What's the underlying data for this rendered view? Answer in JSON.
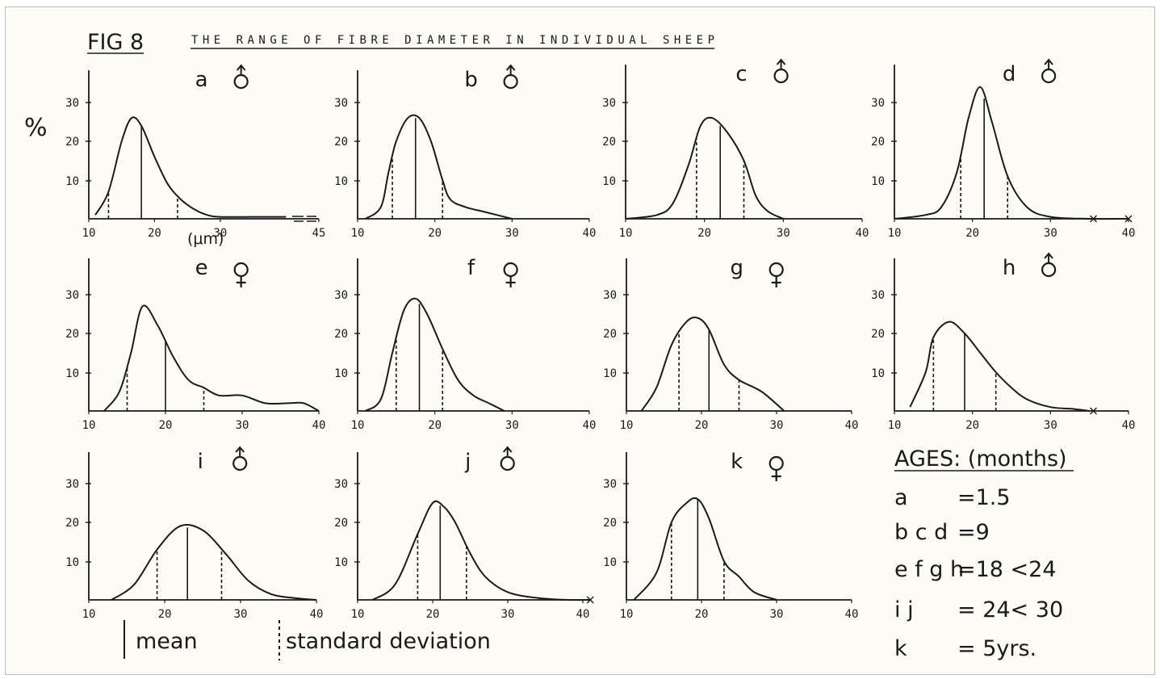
{
  "figure": {
    "label": "FIG 8",
    "title": "THE RANGE OF FIBRE DIAMETER IN INDIVIDUAL SHEEP",
    "y_unit": "%",
    "x_unit": "(μm)"
  },
  "legend": {
    "mean": "mean",
    "sd": "standard deviation"
  },
  "ages": {
    "heading": "AGES: (months)",
    "rows": [
      {
        "key": "a",
        "value": "=1.5"
      },
      {
        "key": "b c d",
        "value": "=9"
      },
      {
        "key": "e f g h",
        "value": "=18 <24"
      },
      {
        "key": "i j",
        "value": "= 24< 30"
      },
      {
        "key": "k",
        "value": "= 5yrs."
      }
    ]
  },
  "colors": {
    "ink": "#1a1a1a",
    "paper": "#fdfcf4"
  },
  "chart_data": [
    {
      "id": "a",
      "type": "line",
      "label": "a",
      "sex": "male",
      "xlim": [
        10,
        45
      ],
      "xticks": [
        10,
        20,
        30,
        45
      ],
      "yticks": [
        10,
        20,
        30
      ],
      "ylim": [
        0,
        36
      ],
      "x": [
        11,
        13,
        15,
        16.5,
        18,
        20,
        22,
        24,
        26,
        28,
        30,
        35,
        40
      ],
      "y": [
        1,
        7,
        20,
        26,
        24,
        16,
        9,
        5,
        2.5,
        1,
        0.5,
        0.5,
        0.5
      ],
      "mean": 18,
      "sd_low": 13,
      "sd_high": 23.5,
      "marks": []
    },
    {
      "id": "b",
      "type": "line",
      "label": "b",
      "sex": "male",
      "xlim": [
        10,
        40
      ],
      "xticks": [
        10,
        20,
        30,
        40
      ],
      "yticks": [
        10,
        20,
        30
      ],
      "ylim": [
        0,
        36
      ],
      "x": [
        11,
        13,
        14,
        15,
        16.5,
        18,
        19.5,
        21,
        22,
        24,
        26,
        28,
        30
      ],
      "y": [
        0,
        3,
        12,
        20,
        26,
        26,
        20,
        10,
        5,
        3,
        2,
        1,
        0
      ],
      "mean": 17.5,
      "sd_low": 14.5,
      "sd_high": 21,
      "marks": []
    },
    {
      "id": "c",
      "type": "line",
      "label": "c",
      "sex": "male",
      "xlim": [
        10,
        40
      ],
      "xticks": [
        10,
        20,
        30,
        40
      ],
      "yticks": [
        10,
        20,
        30
      ],
      "ylim": [
        0,
        36
      ],
      "x": [
        10,
        14,
        16,
        18,
        19.5,
        21,
        23,
        25,
        26.5,
        28,
        30
      ],
      "y": [
        0,
        1,
        4,
        14,
        24,
        26,
        22,
        15,
        6,
        2,
        0
      ],
      "mean": 22,
      "sd_low": 19,
      "sd_high": 25,
      "marks": []
    },
    {
      "id": "d",
      "type": "line",
      "label": "d",
      "sex": "male",
      "xlim": [
        10,
        40
      ],
      "xticks": [
        10,
        20,
        30,
        40
      ],
      "yticks": [
        10,
        20,
        30
      ],
      "ylim": [
        0,
        36
      ],
      "x": [
        10,
        14,
        16,
        18,
        19.5,
        21,
        22.5,
        24.5,
        27,
        30,
        35,
        40
      ],
      "y": [
        0,
        1,
        3,
        12,
        26,
        34,
        25,
        11,
        3,
        0.5,
        0,
        0
      ],
      "mean": 21.5,
      "sd_low": 18.5,
      "sd_high": 24.5,
      "marks": [
        35.5,
        40
      ]
    },
    {
      "id": "e",
      "type": "line",
      "label": "e",
      "sex": "female",
      "xlim": [
        10,
        40
      ],
      "xticks": [
        10,
        20,
        30,
        40
      ],
      "yticks": [
        10,
        20,
        30
      ],
      "ylim": [
        0,
        36
      ],
      "x": [
        12,
        14,
        15.5,
        17,
        19,
        21,
        23,
        25,
        27,
        30,
        33,
        36,
        38,
        40
      ],
      "y": [
        0,
        5,
        15,
        27,
        22,
        14,
        8,
        6,
        4,
        4,
        2,
        2,
        2,
        0
      ],
      "mean": 20,
      "sd_low": 15,
      "sd_high": 25,
      "marks": []
    },
    {
      "id": "f",
      "type": "line",
      "label": "f",
      "sex": "female",
      "xlim": [
        10,
        40
      ],
      "xticks": [
        10,
        20,
        30,
        40
      ],
      "yticks": [
        10,
        20,
        30
      ],
      "ylim": [
        0,
        36
      ],
      "x": [
        11,
        13,
        14.5,
        16,
        17.5,
        19,
        21,
        23,
        25,
        27,
        29
      ],
      "y": [
        0,
        3,
        15,
        26,
        29,
        25,
        16,
        8,
        4,
        2,
        0
      ],
      "mean": 18,
      "sd_low": 15,
      "sd_high": 21,
      "marks": []
    },
    {
      "id": "g",
      "type": "line",
      "label": "g",
      "sex": "female",
      "xlim": [
        10,
        40
      ],
      "xticks": [
        10,
        20,
        30,
        40
      ],
      "yticks": [
        10,
        20,
        30
      ],
      "ylim": [
        0,
        36
      ],
      "x": [
        12,
        14,
        16,
        18,
        19.5,
        21,
        23,
        25,
        28,
        31
      ],
      "y": [
        0,
        6,
        17,
        23,
        24,
        21,
        12,
        8,
        5,
        0
      ],
      "mean": 21,
      "sd_low": 17,
      "sd_high": 25,
      "marks": []
    },
    {
      "id": "h",
      "type": "line",
      "label": "h",
      "sex": "male",
      "xlim": [
        10,
        40
      ],
      "xticks": [
        10,
        20,
        30,
        40
      ],
      "yticks": [
        10,
        20,
        30
      ],
      "ylim": [
        0,
        36
      ],
      "x": [
        12,
        14,
        15,
        17,
        19,
        21,
        23,
        25,
        27,
        30,
        33,
        35
      ],
      "y": [
        1,
        10,
        19,
        23,
        20,
        15,
        10,
        6,
        3,
        1,
        0.5,
        0
      ],
      "mean": 19,
      "sd_low": 15,
      "sd_high": 23,
      "marks": [
        35.5
      ]
    },
    {
      "id": "i",
      "type": "line",
      "label": "i",
      "sex": "male",
      "xlim": [
        10,
        40
      ],
      "xticks": [
        10,
        20,
        30,
        40
      ],
      "yticks": [
        10,
        20,
        30
      ],
      "ylim": [
        0,
        36
      ],
      "x": [
        13,
        16,
        19,
        22,
        25,
        28,
        31,
        34,
        37,
        40
      ],
      "y": [
        0,
        4,
        13,
        19,
        18,
        12,
        5,
        1.5,
        0.5,
        0
      ],
      "mean": 23,
      "sd_low": 19,
      "sd_high": 27.5,
      "marks": []
    },
    {
      "id": "j",
      "type": "line",
      "label": "j",
      "sex": "male",
      "xlim": [
        10,
        40
      ],
      "xticks": [
        10,
        20,
        30,
        40
      ],
      "yticks": [
        10,
        20,
        30
      ],
      "ylim": [
        0,
        36
      ],
      "x": [
        12,
        15,
        18,
        20,
        21.5,
        23,
        25,
        27,
        30,
        34,
        38,
        41
      ],
      "y": [
        0,
        4,
        17,
        25,
        24,
        20,
        12,
        6,
        2,
        0.5,
        0,
        0
      ],
      "mean": 21,
      "sd_low": 18,
      "sd_high": 24.5,
      "marks": [
        41
      ]
    },
    {
      "id": "k",
      "type": "line",
      "label": "k",
      "sex": "female",
      "xlim": [
        10,
        40
      ],
      "xticks": [
        10,
        20,
        30,
        40
      ],
      "yticks": [
        10,
        20,
        30
      ],
      "ylim": [
        0,
        36
      ],
      "x": [
        11,
        14,
        16,
        18,
        19.5,
        21,
        23,
        25,
        27,
        30
      ],
      "y": [
        0,
        7,
        20,
        25,
        26,
        21,
        10,
        6,
        2,
        0
      ],
      "mean": 19.5,
      "sd_low": 16,
      "sd_high": 23,
      "marks": []
    }
  ]
}
